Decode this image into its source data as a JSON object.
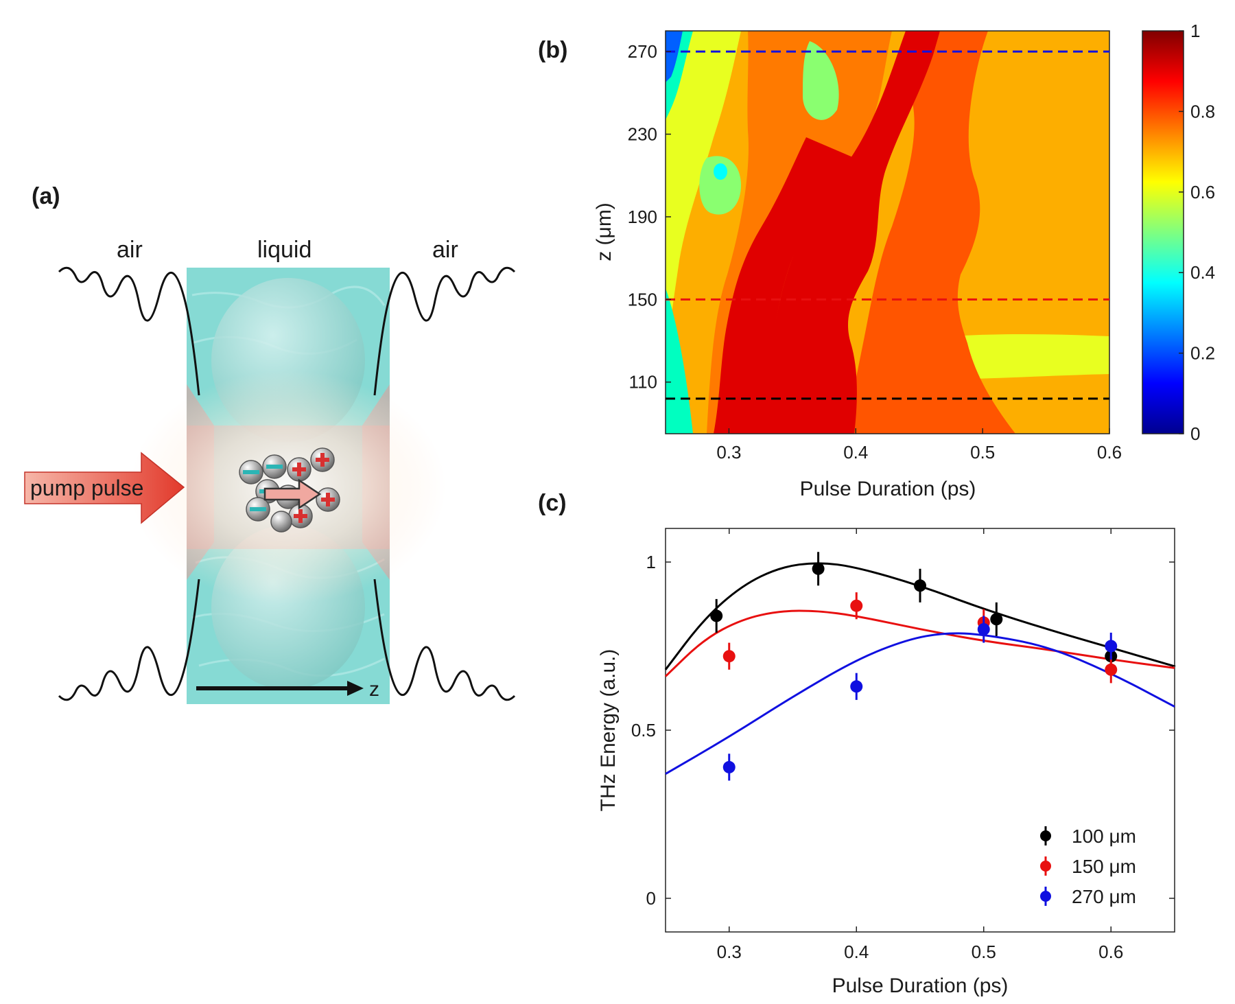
{
  "panel_a": {
    "label": "(a)",
    "left_medium": "air",
    "center_medium": "liquid",
    "right_medium": "air",
    "pump_label": "pump pulse",
    "axis_label": "z",
    "colors": {
      "liquid": "#7fd6d0",
      "pump": "#e8443a"
    }
  },
  "chart_data": [
    {
      "type": "heatmap",
      "panel_label": "(b)",
      "xlabel": "Pulse Duration (ps)",
      "ylabel": "z (μm)",
      "xlim": [
        0.25,
        0.6
      ],
      "ylim": [
        85,
        280
      ],
      "xticks": [
        "0.3",
        "0.4",
        "0.5",
        "0.6"
      ],
      "yticks": [
        "110",
        "150",
        "190",
        "230",
        "270"
      ],
      "colorbar": {
        "range": [
          0,
          1
        ],
        "ticks": [
          "0",
          "0.2",
          "0.4",
          "0.6",
          "0.8",
          "1"
        ]
      },
      "reference_lines": [
        {
          "z": 270,
          "color": "#1010e0"
        },
        {
          "z": 150,
          "color": "#e81010"
        },
        {
          "z": 102,
          "color": "#000000"
        }
      ],
      "description_zones": "peak (~0.95) near 0.3–0.4 ps for z<180 μm shifting to 0.45 ps at z=270 μm"
    },
    {
      "type": "line",
      "panel_label": "(c)",
      "xlabel": "Pulse Duration (ps)",
      "ylabel": "THz Energy (a.u.)",
      "xlim": [
        0.25,
        0.65
      ],
      "ylim": [
        -0.1,
        1.1
      ],
      "xticks": [
        "0.3",
        "0.4",
        "0.5",
        "0.6"
      ],
      "yticks": [
        "0",
        "0.5",
        "1"
      ],
      "series": [
        {
          "name": "100 μm",
          "color": "#000000",
          "points": [
            [
              0.29,
              0.84
            ],
            [
              0.37,
              0.98
            ],
            [
              0.45,
              0.93
            ],
            [
              0.51,
              0.83
            ],
            [
              0.6,
              0.72
            ]
          ],
          "errors": [
            0.05,
            0.05,
            0.05,
            0.05,
            0.04
          ],
          "fit": [
            [
              0.25,
              0.68
            ],
            [
              0.28,
              0.83
            ],
            [
              0.31,
              0.93
            ],
            [
              0.34,
              0.985
            ],
            [
              0.37,
              1.0
            ],
            [
              0.4,
              0.985
            ],
            [
              0.45,
              0.93
            ],
            [
              0.5,
              0.86
            ],
            [
              0.55,
              0.8
            ],
            [
              0.6,
              0.745
            ],
            [
              0.65,
              0.69
            ]
          ]
        },
        {
          "name": "150 μm",
          "color": "#e81010",
          "points": [
            [
              0.3,
              0.72
            ],
            [
              0.4,
              0.87
            ],
            [
              0.5,
              0.82
            ],
            [
              0.6,
              0.68
            ]
          ],
          "errors": [
            0.04,
            0.04,
            0.04,
            0.04
          ],
          "fit": [
            [
              0.25,
              0.66
            ],
            [
              0.28,
              0.77
            ],
            [
              0.31,
              0.83
            ],
            [
              0.34,
              0.855
            ],
            [
              0.37,
              0.855
            ],
            [
              0.4,
              0.84
            ],
            [
              0.45,
              0.8
            ],
            [
              0.5,
              0.765
            ],
            [
              0.55,
              0.74
            ],
            [
              0.6,
              0.71
            ],
            [
              0.65,
              0.685
            ]
          ]
        },
        {
          "name": "270 μm",
          "color": "#1010e0",
          "points": [
            [
              0.3,
              0.39
            ],
            [
              0.4,
              0.63
            ],
            [
              0.5,
              0.8
            ],
            [
              0.6,
              0.75
            ]
          ],
          "errors": [
            0.04,
            0.04,
            0.04,
            0.04
          ],
          "fit": [
            [
              0.25,
              0.37
            ],
            [
              0.3,
              0.48
            ],
            [
              0.35,
              0.6
            ],
            [
              0.4,
              0.71
            ],
            [
              0.44,
              0.77
            ],
            [
              0.47,
              0.79
            ],
            [
              0.5,
              0.785
            ],
            [
              0.55,
              0.75
            ],
            [
              0.6,
              0.67
            ],
            [
              0.65,
              0.57
            ]
          ]
        }
      ],
      "legend": [
        "100 μm",
        "150 μm",
        "270 μm"
      ],
      "legend_position": "bottom-right"
    }
  ]
}
